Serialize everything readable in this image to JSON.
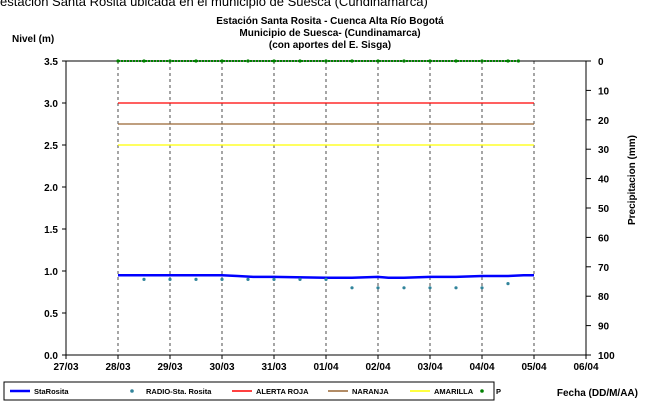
{
  "caption": "estación Santa Rosita ubicada en el municipio de Suesca (Cundinamarca)",
  "chart_data": {
    "type": "line",
    "title_lines": [
      "Estación Santa Rosita - Cuenca Alta Río Bogotá",
      "Municipio de Suesca- (Cundinamarca)",
      "(con aportes del  E. Sisga)"
    ],
    "ylabel": "Nivel (m)",
    "y2label": "Precipitacion (mm)",
    "xlabel": "Fecha (DD/M/AA)",
    "x_ticks": [
      "27/03",
      "28/03",
      "29/03",
      "30/03",
      "31/03",
      "01/04",
      "02/04",
      "03/04",
      "04/04",
      "05/04",
      "06/04"
    ],
    "y_ticks": [
      "0.0",
      "0.5",
      "1.0",
      "1.5",
      "2.0",
      "2.5",
      "3.0",
      "3.5"
    ],
    "y2_ticks": [
      "0",
      "10",
      "20",
      "30",
      "40",
      "50",
      "60",
      "70",
      "80",
      "90",
      "100"
    ],
    "xlim": [
      0,
      10
    ],
    "ylim": [
      0,
      3.5
    ],
    "y2lim": [
      0,
      100
    ],
    "y2_inverted": true,
    "legend_position": "bottom",
    "series": [
      {
        "name": "StaRosita",
        "kind": "line",
        "color": "#0000ff",
        "axis": "left",
        "x": [
          1.0,
          2.0,
          3.0,
          3.3,
          3.6,
          4.0,
          5.0,
          5.5,
          6.0,
          6.2,
          6.5,
          7.0,
          7.5,
          8.0,
          8.5,
          8.8,
          9.0
        ],
        "y": [
          0.95,
          0.95,
          0.95,
          0.94,
          0.93,
          0.93,
          0.92,
          0.92,
          0.93,
          0.92,
          0.92,
          0.93,
          0.93,
          0.94,
          0.94,
          0.95,
          0.95
        ]
      },
      {
        "name": "RADIO-Sta. Rosita",
        "kind": "points",
        "color": "#31849b",
        "axis": "left",
        "x": [
          1.5,
          2.0,
          2.5,
          3.0,
          3.5,
          4.0,
          4.5,
          5.0,
          5.5,
          6.0,
          6.5,
          7.0,
          7.5,
          8.0,
          8.5
        ],
        "y": [
          0.9,
          0.9,
          0.9,
          0.9,
          0.9,
          0.9,
          0.9,
          0.9,
          0.8,
          0.8,
          0.8,
          0.8,
          0.8,
          0.8,
          0.85
        ]
      },
      {
        "name": "ALERTA ROJA",
        "kind": "hline",
        "color": "#ff0000",
        "axis": "left",
        "x": [
          1,
          9
        ],
        "y": [
          3.0,
          3.0
        ]
      },
      {
        "name": "NARANJA",
        "kind": "hline",
        "color": "#996633",
        "axis": "left",
        "x": [
          1,
          9
        ],
        "y": [
          2.75,
          2.75
        ]
      },
      {
        "name": "AMARILLA",
        "kind": "hline",
        "color": "#ffff00",
        "axis": "left",
        "x": [
          1,
          9
        ],
        "y": [
          2.5,
          2.5
        ]
      },
      {
        "name": "P",
        "kind": "points",
        "color": "#008000",
        "axis": "right",
        "x": [
          1.0,
          1.5,
          2.0,
          2.5,
          3.0,
          3.5,
          4.0,
          4.5,
          5.0,
          5.5,
          6.0,
          6.5,
          7.0,
          7.5,
          8.0,
          8.5,
          8.7
        ],
        "y": [
          0,
          0,
          0,
          0,
          0,
          0,
          0,
          0,
          0,
          0,
          0,
          0,
          0,
          0,
          0,
          0,
          0
        ]
      }
    ]
  }
}
